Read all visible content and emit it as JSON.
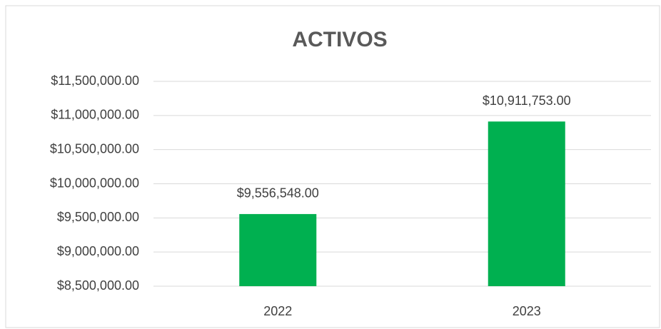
{
  "chart_data": {
    "type": "bar",
    "title": "ACTIVOS",
    "categories": [
      "2022",
      "2023"
    ],
    "values": [
      9556548,
      10911753
    ],
    "value_labels": [
      "$9,556,548.00",
      "$10,911,753.00"
    ],
    "color": "#00b050",
    "ylim": [
      8500000,
      11500000
    ],
    "yticks": [
      {
        "value": 8500000,
        "label": "$8,500,000.00"
      },
      {
        "value": 9000000,
        "label": "$9,000,000.00"
      },
      {
        "value": 9500000,
        "label": "$9,500,000.00"
      },
      {
        "value": 10000000,
        "label": "$10,000,000.00"
      },
      {
        "value": 10500000,
        "label": "$10,500,000.00"
      },
      {
        "value": 11000000,
        "label": "$11,000,000.00"
      },
      {
        "value": 11500000,
        "label": "$11,500,000.00"
      }
    ],
    "grid": true
  }
}
